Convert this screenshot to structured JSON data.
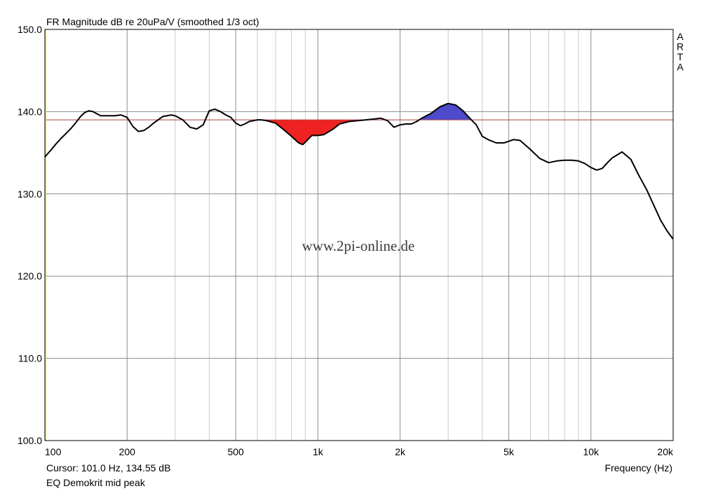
{
  "chart_data": {
    "type": "line",
    "title": "FR Magnitude dB re 20uPa/V (smoothed 1/3 oct)",
    "xlabel": "Frequency (Hz)",
    "ylabel": "",
    "x_scale": "log",
    "xlim": [
      100,
      20000
    ],
    "ylim": [
      100,
      150
    ],
    "grid": true,
    "x_major_ticks": [
      {
        "value": 100,
        "label": "100"
      },
      {
        "value": 200,
        "label": "200"
      },
      {
        "value": 500,
        "label": "500"
      },
      {
        "value": 1000,
        "label": "1k"
      },
      {
        "value": 2000,
        "label": "2k"
      },
      {
        "value": 5000,
        "label": "5k"
      },
      {
        "value": 10000,
        "label": "10k"
      },
      {
        "value": 20000,
        "label": "20k"
      }
    ],
    "x_minor_ticks": [
      300,
      400,
      600,
      700,
      800,
      900,
      3000,
      4000,
      6000,
      7000,
      8000,
      9000
    ],
    "y_ticks": [
      {
        "value": 100,
        "label": "100.0"
      },
      {
        "value": 110,
        "label": "110.0"
      },
      {
        "value": 120,
        "label": "120.0"
      },
      {
        "value": 130,
        "label": "130.0"
      },
      {
        "value": 140,
        "label": "140.0"
      },
      {
        "value": 150,
        "label": "150.0"
      }
    ],
    "reference_level": 139.0,
    "series": [
      {
        "x": [
          100,
          105,
          110,
          115,
          120,
          125,
          130,
          135,
          140,
          145,
          150,
          160,
          170,
          180,
          190,
          200,
          210,
          220,
          230,
          240,
          250,
          270,
          290,
          300,
          320,
          340,
          360,
          380,
          400,
          420,
          440,
          460,
          480,
          500,
          520,
          540,
          560,
          580,
          600,
          620,
          650,
          700,
          750,
          800,
          850,
          880,
          900,
          950,
          1000,
          1050,
          1100,
          1150,
          1200,
          1300,
          1400,
          1500,
          1600,
          1700,
          1800,
          1900,
          2000,
          2100,
          2200,
          2300,
          2400,
          2600,
          2800,
          3000,
          3200,
          3400,
          3600,
          3800,
          4000,
          4200,
          4500,
          4800,
          5000,
          5200,
          5500,
          6000,
          6500,
          7000,
          7500,
          8000,
          8500,
          9000,
          9500,
          10000,
          10500,
          11000,
          11500,
          12000,
          13000,
          14000,
          15000,
          16000,
          17000,
          18000,
          19000,
          20000
        ],
        "y": [
          134.5,
          135.3,
          136.1,
          136.8,
          137.4,
          138.0,
          138.7,
          139.4,
          139.9,
          140.1,
          140.0,
          139.5,
          139.5,
          139.5,
          139.6,
          139.3,
          138.2,
          137.6,
          137.7,
          138.1,
          138.6,
          139.4,
          139.6,
          139.5,
          139.0,
          138.1,
          137.9,
          138.4,
          140.1,
          140.3,
          140.0,
          139.6,
          139.3,
          138.6,
          138.3,
          138.5,
          138.8,
          138.9,
          139.0,
          139.0,
          138.9,
          138.6,
          137.8,
          137.0,
          136.2,
          136.0,
          136.3,
          137.1,
          137.1,
          137.2,
          137.6,
          138.0,
          138.5,
          138.8,
          138.9,
          139.0,
          139.1,
          139.2,
          138.9,
          138.1,
          138.4,
          138.5,
          138.5,
          138.8,
          139.2,
          139.8,
          140.6,
          141.0,
          140.8,
          140.1,
          139.2,
          138.4,
          137.0,
          136.6,
          136.2,
          136.2,
          136.4,
          136.6,
          136.5,
          135.4,
          134.3,
          133.8,
          134.0,
          134.1,
          134.1,
          134.0,
          133.7,
          133.2,
          132.9,
          133.1,
          133.8,
          134.4,
          135.1,
          134.2,
          132.2,
          130.5,
          128.6,
          126.8,
          125.5,
          124.5
        ]
      }
    ],
    "fills": [
      {
        "from": 650,
        "to": 1600,
        "side": "below",
        "color": "#ee2222"
      },
      {
        "from": 2400,
        "to": 3600,
        "side": "above",
        "color": "#4b4bcc"
      }
    ],
    "line_color": "#000000",
    "reference_color": "#b04040",
    "left_axis_color": "#e8e060"
  },
  "footer": {
    "cursor": "Cursor: 101.0 Hz, 134.55 dB",
    "name": "EQ Demokrit mid peak"
  },
  "side_label": [
    "A",
    "R",
    "T",
    "A"
  ],
  "watermark": "www.2pi-online.de"
}
